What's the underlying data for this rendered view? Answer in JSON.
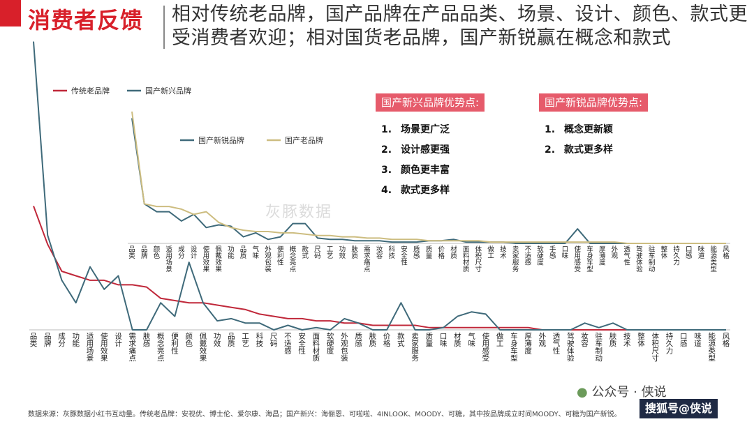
{
  "header": {
    "title": "消费者反馈",
    "subtitle": "相对传统老品牌，国产品牌在产品品类、场景、设计、颜色、款式更受消费者欢迎；相对国货老品牌，国产新锐赢在概念和款式"
  },
  "advantage_boxes": [
    {
      "title": "国产新兴品牌优势点:",
      "items": [
        {
          "num": "1.",
          "text": "场景更广泛"
        },
        {
          "num": "2.",
          "text": "设计感更强"
        },
        {
          "num": "3.",
          "text": "颜色更丰富"
        },
        {
          "num": "4.",
          "text": "款式更多样"
        }
      ]
    },
    {
      "title": "国产新锐品牌优势点:",
      "items": [
        {
          "num": "1.",
          "text": "概念更新颖"
        },
        {
          "num": "2.",
          "text": "款式更多样"
        }
      ]
    }
  ],
  "watermark": {
    "account": "公众号 · 侠说",
    "badge": "搜狐号@侠说",
    "logo_text": "灰豚数据"
  },
  "footer": {
    "source": "数据来源：灰豚数据小红书互动量。传统老品牌：安视优、博士伦、爱尔康、海昌；国产新兴：海俪恩、可啦啦、4INLOOK、MOODY、可糖，其中按品牌成立时间MOODY、可糖为国产新锐。"
  },
  "colors": {
    "red": "#c0283a",
    "teal": "#3f6a7a",
    "khaki": "#cdbd80",
    "accent_bg": "#e65b6b"
  },
  "chart_data": [
    {
      "type": "line",
      "legend_position": "top-left",
      "grid": false,
      "ylim": [
        0,
        100
      ],
      "categories": [
        "品类",
        "品牌",
        "成分",
        "功能",
        "适用场景",
        "使用效果",
        "设计",
        "需求痛点",
        "肤感",
        "概念亮点",
        "便利性",
        "颜色",
        "佩戴效果",
        "功效",
        "品质",
        "工艺",
        "科技",
        "尺码",
        "不适感",
        "安全性",
        "面料材质",
        "软硬度",
        "外观包装",
        "质感",
        "肤质",
        "价格",
        "款式",
        "卖家服务",
        "质量",
        "口味",
        "材质",
        "气味",
        "使用感受",
        "做工",
        "车身车型",
        "厚薄度",
        "外观",
        "透气性",
        "驾驶体验",
        "妆容",
        "驻车制动",
        "肤质",
        "技术",
        "整体",
        "体积尺寸",
        "持久力",
        "口感",
        "味道",
        "能源类型",
        "风格"
      ],
      "series": [
        {
          "name": "传统老品牌",
          "color": "#c0283a",
          "values": [
            55,
            38,
            26,
            24,
            22,
            22,
            20,
            20,
            19,
            14,
            13,
            12,
            12,
            11,
            10,
            9,
            7,
            6,
            5,
            5,
            4,
            4,
            3,
            3,
            2,
            2,
            2,
            2,
            1,
            1,
            1,
            1,
            1,
            1,
            1,
            1,
            0,
            0,
            0,
            0,
            0,
            0,
            0,
            0,
            0,
            0,
            0,
            0,
            0,
            0
          ]
        },
        {
          "name": "国产新兴品牌",
          "color": "#3f6a7a",
          "values": [
            128,
            42,
            22,
            12,
            28,
            18,
            24,
            0,
            0,
            12,
            6,
            30,
            12,
            4,
            5,
            3,
            3,
            0,
            2,
            0,
            1,
            0,
            5,
            3,
            0,
            0,
            12,
            0,
            0,
            1,
            6,
            8,
            7,
            0,
            0,
            0,
            0,
            0,
            0,
            3,
            1,
            3,
            0,
            0,
            0,
            0,
            0,
            0,
            0,
            0
          ]
        }
      ]
    },
    {
      "type": "line",
      "legend_position": "top-center",
      "grid": false,
      "ylim": [
        0,
        100
      ],
      "categories": [
        "品类",
        "品牌",
        "颜色",
        "适用场景",
        "成分",
        "设计",
        "使用效果",
        "佩戴效果",
        "功能",
        "品质",
        "气味",
        "外观包装",
        "便利性",
        "概念亮点",
        "款式",
        "尺码",
        "工艺",
        "功效",
        "肤质",
        "需求痛点",
        "妆容",
        "科技",
        "安全性",
        "质感",
        "质量",
        "价格",
        "材质",
        "面料材质",
        "体积尺寸",
        "做工",
        "技术",
        "卖家服务",
        "不适感",
        "软硬度",
        "手感",
        "口味",
        "使用感受",
        "车身车型",
        "厚薄度",
        "外观",
        "透气性",
        "驾驶体验",
        "驻车制动",
        "整体",
        "持久力",
        "口感",
        "味道",
        "能源类型",
        "风格"
      ],
      "series": [
        {
          "name": "国产新锐品牌",
          "color": "#3f6a7a",
          "values": [
            95,
            30,
            24,
            24,
            17,
            22,
            12,
            14,
            13,
            5,
            8,
            3,
            5,
            15,
            15,
            4,
            3,
            3,
            2,
            2,
            2,
            1,
            1,
            1,
            2,
            2,
            3,
            1,
            1,
            1,
            1,
            0,
            0,
            0,
            0,
            0,
            11,
            0,
            0,
            0,
            0,
            0,
            0,
            0,
            0,
            0,
            0,
            0,
            0
          ]
        },
        {
          "name": "国产老品牌",
          "color": "#cdbd80",
          "values": [
            100,
            30,
            28,
            28,
            26,
            22,
            24,
            16,
            12,
            10,
            9,
            9,
            8,
            8,
            7,
            6,
            6,
            5,
            5,
            4,
            4,
            3,
            3,
            3,
            2,
            2,
            2,
            2,
            2,
            1,
            1,
            1,
            1,
            1,
            1,
            1,
            1,
            1,
            1,
            1,
            0,
            0,
            0,
            0,
            0,
            0,
            0,
            0,
            0
          ]
        }
      ]
    }
  ]
}
